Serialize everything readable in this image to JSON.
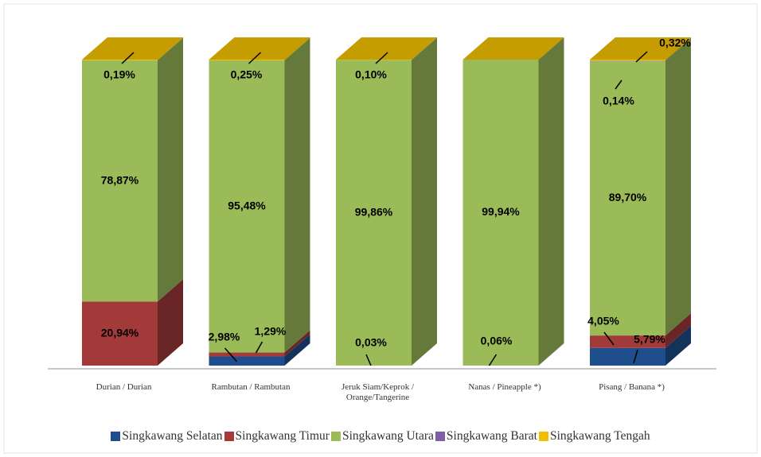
{
  "chart_data": {
    "type": "bar3d_stacked",
    "categories": [
      "Durian / Durian",
      "Rambutan / Rambutan",
      "Jeruk Siam/Keprok / Orange/Tangerine",
      "Nanas / Pineapple *)",
      "Pisang / Banana *)"
    ],
    "series": [
      {
        "name": "Singkawang Selatan",
        "color": "#1f4e8c",
        "values": [
          0,
          2.98,
          0.03,
          0.06,
          5.79
        ],
        "value_labels": [
          null,
          "2,98%",
          "0,03%",
          "0,06%",
          "5,79%"
        ]
      },
      {
        "name": "Singkawang Timur",
        "color": "#a33a3a",
        "values": [
          20.94,
          1.29,
          0,
          0,
          4.05
        ],
        "value_labels": [
          "20,94%",
          "1,29%",
          null,
          null,
          "4,05%"
        ]
      },
      {
        "name": "Singkawang Utara",
        "color": "#9bbb59",
        "values": [
          78.87,
          95.48,
          99.86,
          99.94,
          89.7
        ],
        "value_labels": [
          "78,87%",
          "95,48%",
          "99,86%",
          "99,94%",
          "89,70%"
        ]
      },
      {
        "name": "Singkawang Barat",
        "color": "#7e5ea8",
        "values": [
          0,
          0,
          0,
          0,
          0.14
        ],
        "value_labels": [
          null,
          null,
          null,
          null,
          "0,14%"
        ]
      },
      {
        "name": "Singkawang Tengah",
        "color": "#f0c000",
        "values": [
          0.19,
          0.25,
          0.1,
          0,
          0.32
        ],
        "value_labels": [
          "0,19%",
          "0,25%",
          "0,10%",
          null,
          "0,32%"
        ]
      }
    ],
    "ylim": [
      0,
      100
    ],
    "legend": "bottom"
  }
}
